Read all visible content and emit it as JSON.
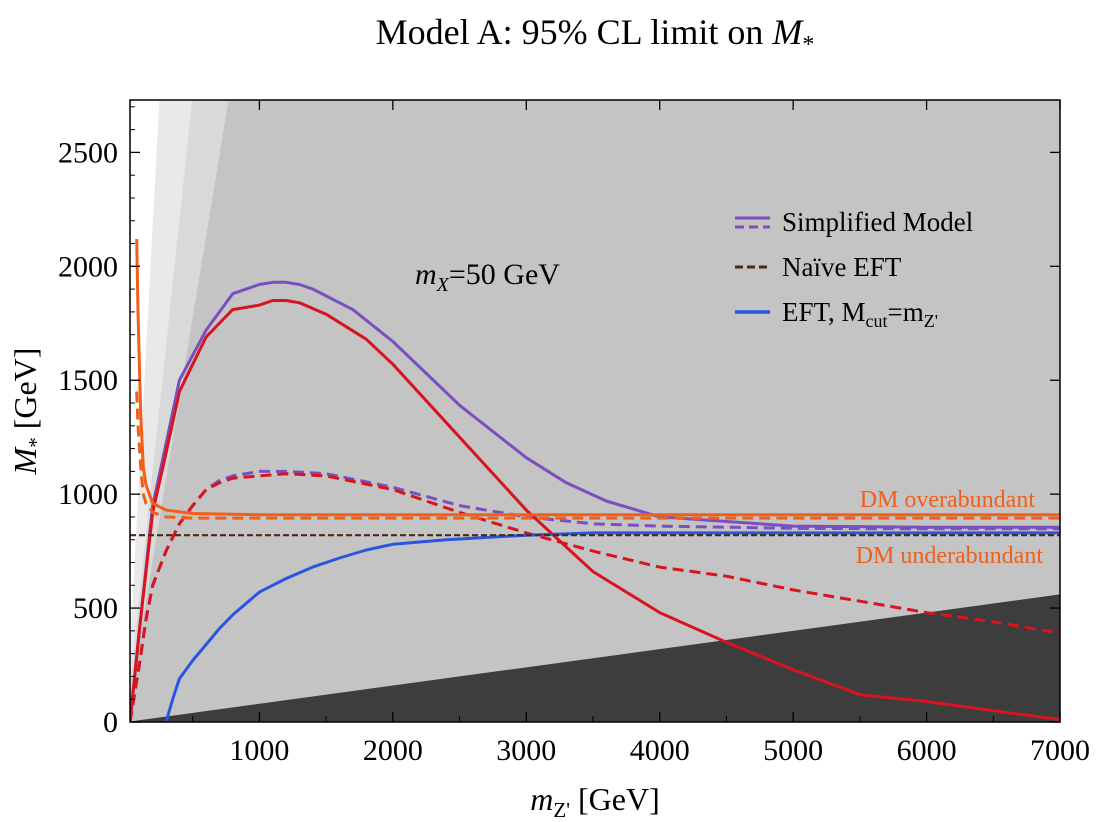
{
  "chart_data": {
    "type": "line",
    "title_main": "Model A: 95% CL limit on ",
    "title_var": "M",
    "title_sub": "*",
    "xlabel_var": "m",
    "xlabel_sub": "Z'",
    "xlabel_unit": " [GeV]",
    "ylabel_var": "M",
    "ylabel_sub": "*",
    "ylabel_unit": " [GeV]",
    "xlim": [
      30,
      7000
    ],
    "ylim": [
      0,
      2730
    ],
    "x_ticks": [
      1000,
      2000,
      3000,
      4000,
      5000,
      6000,
      7000
    ],
    "y_ticks": [
      0,
      500,
      1000,
      1500,
      2000,
      2500
    ],
    "annotation": {
      "var": "m",
      "sub": "X",
      "text": "=50 GeV"
    },
    "relic_labels": {
      "over": "DM overabundant",
      "under": "DM underabundant"
    },
    "legend": {
      "placement": "upper-right",
      "entries": [
        {
          "label": "Simplified Model",
          "style": "solid+dashed",
          "color": "#7b4fbf"
        },
        {
          "label": "Naïve EFT",
          "style": "dashed",
          "color": "#4a2a1a"
        },
        {
          "label_main": "EFT, M",
          "label_sub1": "cut",
          "label_mid": "=m",
          "label_sub2": "Z'",
          "style": "solid",
          "color": "#2a55e0"
        }
      ]
    },
    "shaded_regions": [
      {
        "name": "region-lightest",
        "slope_vs_mZ": 10.9,
        "color": "#e9e9e9"
      },
      {
        "name": "region-light",
        "slope_vs_mZ": 5.5,
        "color": "#d9d9d9"
      },
      {
        "name": "region-mid",
        "slope_vs_mZ": 3.55,
        "color": "#c4c4c4"
      },
      {
        "name": "region-gray",
        "slope_vs_mZ": 0.0,
        "color": "#b4b4b4"
      },
      {
        "name": "region-dark",
        "slope_vs_mZ": 0.08,
        "color": "#3d3d3d"
      }
    ],
    "series": [
      {
        "color": "#7b4fbf",
        "dash": false,
        "x": [
          30,
          100,
          200,
          300,
          400,
          500,
          600,
          800,
          1000,
          1100,
          1200,
          1300,
          1400,
          1700,
          2000,
          2500,
          3000,
          3300,
          3600,
          4000,
          5000,
          6000,
          7000
        ],
        "y": [
          0,
          400,
          950,
          1220,
          1500,
          1610,
          1720,
          1880,
          1920,
          1930,
          1930,
          1920,
          1900,
          1810,
          1670,
          1390,
          1160,
          1050,
          970,
          900,
          860,
          855,
          855
        ]
      },
      {
        "color": "#7b4fbf",
        "dash": true,
        "x": [
          30,
          100,
          150,
          200,
          300,
          400,
          500,
          600,
          700,
          800,
          1000,
          1200,
          1500,
          2000,
          2500,
          3000,
          3500,
          4000,
          5000,
          6000,
          7000
        ],
        "y": [
          0,
          250,
          450,
          600,
          750,
          870,
          950,
          1020,
          1060,
          1080,
          1100,
          1100,
          1090,
          1030,
          950,
          900,
          870,
          860,
          850,
          848,
          848
        ]
      },
      {
        "color": "#d8141e",
        "dash": false,
        "x": [
          30,
          100,
          200,
          300,
          400,
          500,
          600,
          800,
          1000,
          1100,
          1200,
          1300,
          1500,
          1800,
          2000,
          2500,
          3000,
          3500,
          4000,
          4500,
          5000,
          5500,
          6000,
          6500,
          7000
        ],
        "y": [
          0,
          400,
          920,
          1180,
          1450,
          1570,
          1690,
          1810,
          1830,
          1850,
          1850,
          1840,
          1790,
          1680,
          1570,
          1250,
          930,
          660,
          480,
          350,
          230,
          120,
          90,
          50,
          10
        ]
      },
      {
        "color": "#d8141e",
        "dash": true,
        "x": [
          30,
          100,
          150,
          200,
          300,
          400,
          500,
          600,
          700,
          800,
          1000,
          1200,
          1500,
          2000,
          2500,
          3000,
          3500,
          4000,
          4500,
          5000,
          5500,
          6000,
          6500,
          7000
        ],
        "y": [
          0,
          250,
          450,
          600,
          750,
          870,
          950,
          1020,
          1050,
          1070,
          1080,
          1090,
          1080,
          1020,
          920,
          830,
          750,
          680,
          640,
          580,
          530,
          480,
          440,
          390
        ]
      },
      {
        "color": "#2a55e0",
        "dash": false,
        "x": [
          300,
          350,
          400,
          500,
          600,
          700,
          800,
          1000,
          1200,
          1400,
          1600,
          1800,
          2000,
          2400,
          3000,
          3500,
          4000,
          5000,
          6000,
          7000
        ],
        "y": [
          0,
          100,
          190,
          270,
          340,
          410,
          470,
          570,
          630,
          680,
          720,
          755,
          780,
          800,
          820,
          830,
          830,
          830,
          830,
          830
        ]
      },
      {
        "color": "#f0601a",
        "dash": false,
        "x": [
          80,
          90,
          110,
          130,
          150,
          200,
          300,
          500,
          1000,
          2000,
          3000,
          4000,
          5000,
          6000,
          7000
        ],
        "y": [
          2120,
          1800,
          1350,
          1120,
          1040,
          960,
          930,
          915,
          910,
          910,
          910,
          910,
          910,
          910,
          910
        ]
      },
      {
        "color": "#f0601a",
        "dash": true,
        "x": [
          80,
          90,
          110,
          130,
          150,
          200,
          300,
          500,
          1000,
          2000,
          3000,
          4000,
          5000,
          6000,
          7000
        ],
        "y": [
          1450,
          1300,
          1120,
          1000,
          960,
          920,
          900,
          895,
          895,
          895,
          895,
          895,
          895,
          895,
          895
        ]
      },
      {
        "color": "#4a2a1a",
        "dash": true,
        "x": [
          30,
          7000
        ],
        "y": [
          820,
          820
        ]
      }
    ]
  }
}
